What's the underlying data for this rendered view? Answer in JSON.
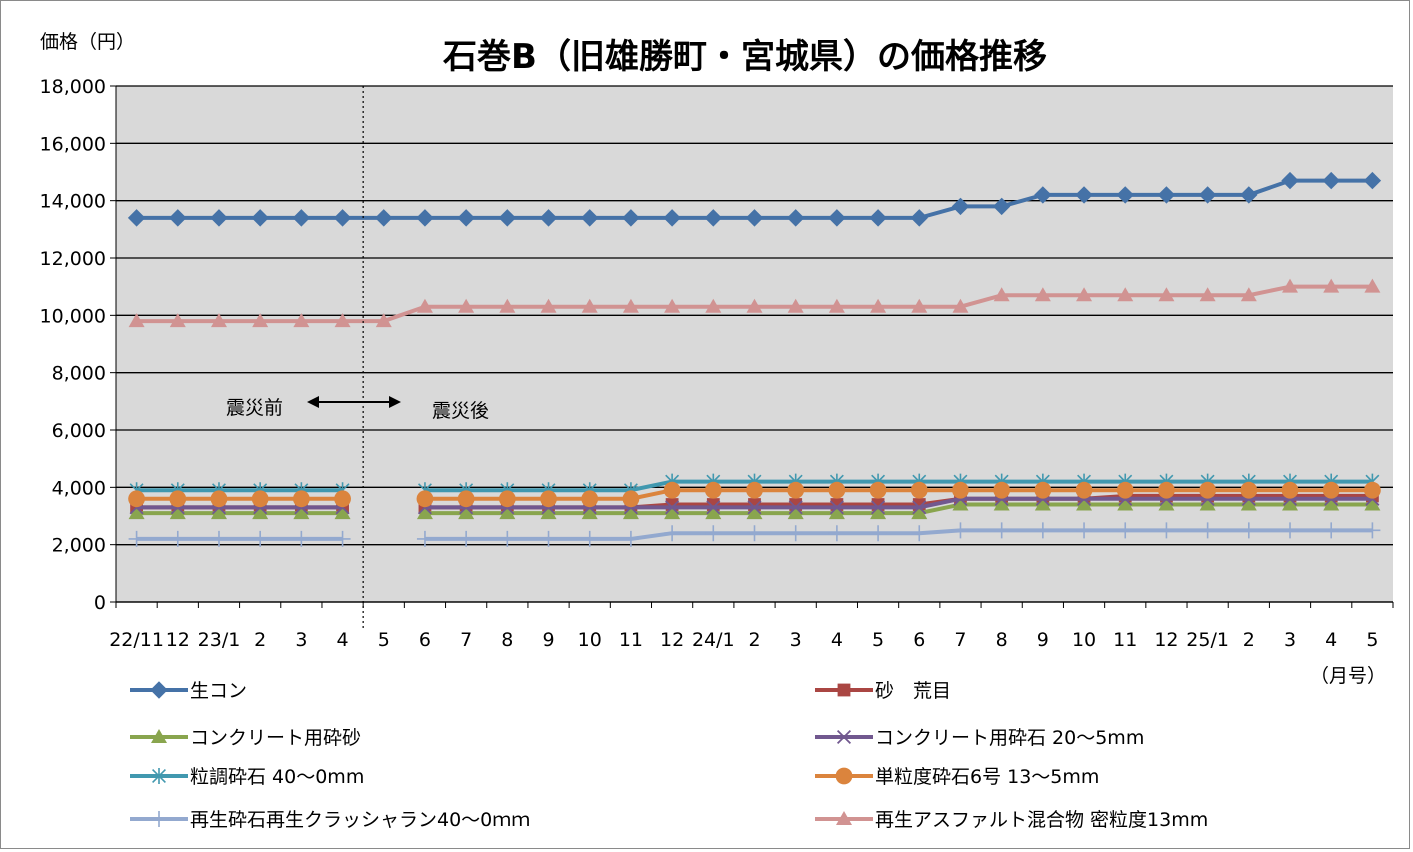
{
  "chart_data": {
    "type": "line",
    "title": "石巻B（旧雄勝町・宮城県）の価格推移",
    "ylabel": "価格（円）",
    "xlabel": "（月号）",
    "ylim": [
      0,
      18000
    ],
    "yticks": [
      0,
      2000,
      4000,
      6000,
      8000,
      10000,
      12000,
      14000,
      16000,
      18000
    ],
    "ytick_labels": [
      "0",
      "2,000",
      "4,000",
      "6,000",
      "8,000",
      "10,000",
      "12,000",
      "14,000",
      "16,000",
      "18,000"
    ],
    "grid": true,
    "legend_position": "bottom",
    "categories": [
      "22/11",
      "12",
      "23/1",
      "2",
      "3",
      "4",
      "5",
      "6",
      "7",
      "8",
      "9",
      "10",
      "11",
      "12",
      "24/1",
      "2",
      "3",
      "4",
      "5",
      "6",
      "7",
      "8",
      "9",
      "10",
      "11",
      "12",
      "25/1",
      "2",
      "3",
      "4",
      "5"
    ],
    "annotations": {
      "before": "震災前",
      "after": "震災後",
      "divider_after_category": "4"
    },
    "series": [
      {
        "name": "生コン",
        "color": "#4572a7",
        "marker": "diamond",
        "values": [
          13400,
          13400,
          13400,
          13400,
          13400,
          13400,
          13400,
          13400,
          13400,
          13400,
          13400,
          13400,
          13400,
          13400,
          13400,
          13400,
          13400,
          13400,
          13400,
          13400,
          13800,
          13800,
          14200,
          14200,
          14200,
          14200,
          14200,
          14200,
          14700,
          14700,
          14700
        ]
      },
      {
        "name": "砂　荒目",
        "color": "#aa4643",
        "marker": "square",
        "values": [
          3300,
          3300,
          3300,
          3300,
          3300,
          3300,
          null,
          3300,
          3300,
          3300,
          3300,
          3300,
          3300,
          3400,
          3400,
          3400,
          3400,
          3400,
          3400,
          3400,
          3600,
          3600,
          3600,
          3600,
          3700,
          3700,
          3700,
          3700,
          3700,
          3700,
          3700
        ]
      },
      {
        "name": "コンクリート用砕砂",
        "color": "#89a54e",
        "marker": "triangle",
        "values": [
          3100,
          3100,
          3100,
          3100,
          3100,
          3100,
          null,
          3100,
          3100,
          3100,
          3100,
          3100,
          3100,
          3100,
          3100,
          3100,
          3100,
          3100,
          3100,
          3100,
          3400,
          3400,
          3400,
          3400,
          3400,
          3400,
          3400,
          3400,
          3400,
          3400,
          3400
        ]
      },
      {
        "name": "コンクリート用砕石 20〜5mm",
        "color": "#71588f",
        "marker": "x",
        "values": [
          3300,
          3300,
          3300,
          3300,
          3300,
          3300,
          null,
          3300,
          3300,
          3300,
          3300,
          3300,
          3300,
          3300,
          3300,
          3300,
          3300,
          3300,
          3300,
          3300,
          3600,
          3600,
          3600,
          3600,
          3600,
          3600,
          3600,
          3600,
          3600,
          3600,
          3600
        ]
      },
      {
        "name": "粒調砕石 40〜0mm",
        "color": "#4198af",
        "marker": "asterisk",
        "values": [
          3900,
          3900,
          3900,
          3900,
          3900,
          3900,
          null,
          3900,
          3900,
          3900,
          3900,
          3900,
          3900,
          4200,
          4200,
          4200,
          4200,
          4200,
          4200,
          4200,
          4200,
          4200,
          4200,
          4200,
          4200,
          4200,
          4200,
          4200,
          4200,
          4200,
          4200
        ]
      },
      {
        "name": "単粒度砕石6号 13〜5mm",
        "color": "#db843d",
        "marker": "circle",
        "values": [
          3600,
          3600,
          3600,
          3600,
          3600,
          3600,
          null,
          3600,
          3600,
          3600,
          3600,
          3600,
          3600,
          3900,
          3900,
          3900,
          3900,
          3900,
          3900,
          3900,
          3900,
          3900,
          3900,
          3900,
          3900,
          3900,
          3900,
          3900,
          3900,
          3900,
          3900
        ]
      },
      {
        "name": "再生砕石再生クラッシャラン40〜0ｍｍ",
        "color": "#93a9cf",
        "marker": "plus",
        "values": [
          2200,
          2200,
          2200,
          2200,
          2200,
          2200,
          null,
          2200,
          2200,
          2200,
          2200,
          2200,
          2200,
          2400,
          2400,
          2400,
          2400,
          2400,
          2400,
          2400,
          2500,
          2500,
          2500,
          2500,
          2500,
          2500,
          2500,
          2500,
          2500,
          2500,
          2500
        ]
      },
      {
        "name": "再生アスファルト混合物 密粒度13mm",
        "color": "#d19392",
        "marker": "triangle",
        "values": [
          9800,
          9800,
          9800,
          9800,
          9800,
          9800,
          9800,
          10300,
          10300,
          10300,
          10300,
          10300,
          10300,
          10300,
          10300,
          10300,
          10300,
          10300,
          10300,
          10300,
          10300,
          10700,
          10700,
          10700,
          10700,
          10700,
          10700,
          10700,
          11000,
          11000,
          11000
        ]
      }
    ]
  }
}
